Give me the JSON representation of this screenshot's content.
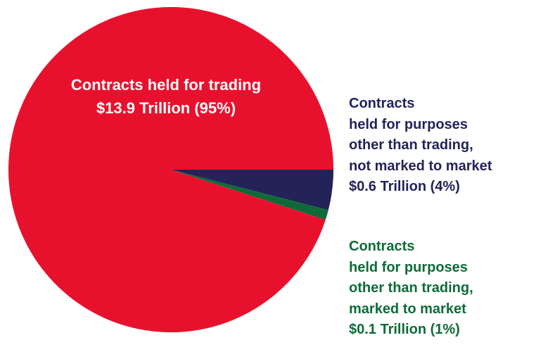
{
  "chart_data": {
    "type": "pie",
    "slices": [
      {
        "key": "trading",
        "lines": [
          "Contracts",
          "held for trading",
          "$13.9 Trillion (95%)"
        ],
        "value": 13.9,
        "percent": 95,
        "color": "#e8112d"
      },
      {
        "key": "not_marked",
        "lines": [
          "Contracts",
          "held for purposes",
          "other than trading,",
          "not marked to market",
          "$0.6 Trillion (4%)"
        ],
        "value": 0.6,
        "percent": 4,
        "color": "#23235a"
      },
      {
        "key": "marked",
        "lines": [
          "Contracts",
          "held for purposes",
          "other than trading,",
          "marked to market",
          "$0.1 Trillion (1%)"
        ],
        "value": 0.1,
        "percent": 1,
        "color": "#0e6b38"
      }
    ]
  }
}
